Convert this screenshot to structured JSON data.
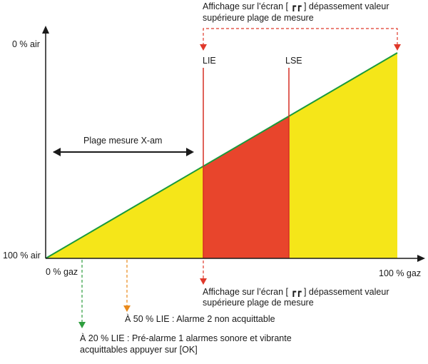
{
  "colors": {
    "zone_safe": "#f5e619",
    "zone_alarm": "#e8452c",
    "line": "#1a9a3c",
    "limit": "#d62f24",
    "arrow_red": "#e0392b",
    "arrow_green": "#2e9e3e",
    "arrow_orange": "#e98a1c",
    "axis": "#1a1a1a"
  },
  "axes": {
    "y_top": "0 % air",
    "y_bottom": "100 % air",
    "x_left": "0 % gaz",
    "x_right": "100 % gaz"
  },
  "limits": {
    "lie": "LIE",
    "lse": "LSE"
  },
  "range_label": "Plage mesure X-am",
  "display_top": {
    "line1": "Affichage sur l’écran [ ┏┏ ] dépassement valeur",
    "line2": "supérieure plage de mesure"
  },
  "display_bottom": {
    "line1": "Affichage sur l’écran [ ┏┏ ] dépassement valeur",
    "line2": "supérieure plage de mesure"
  },
  "alarm_50": "À 50 % LIE : Alarme 2 non acquittable",
  "alarm_20": {
    "line1": "À 20 % LIE : Pré-alarme 1 alarmes sonore et vibrante",
    "line2": "acquittables appuyer sur [OK]"
  }
}
